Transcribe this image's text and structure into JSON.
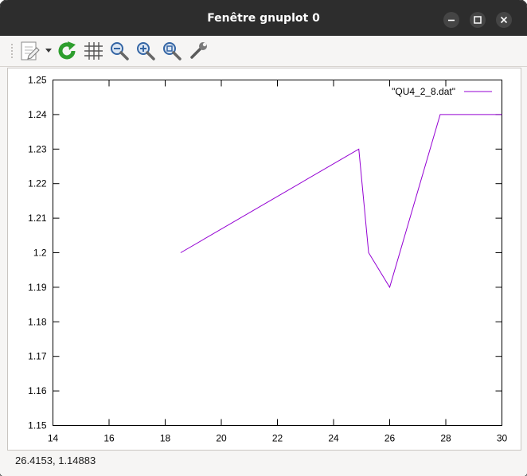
{
  "window": {
    "title": "Fenêtre gnuplot 0"
  },
  "titlebar_buttons": [
    {
      "name": "minimize",
      "icon": "minimize-icon"
    },
    {
      "name": "maximize",
      "icon": "maximize-icon"
    },
    {
      "name": "close",
      "icon": "close-icon"
    }
  ],
  "toolbar": {
    "items": [
      {
        "name": "copy-to-clipboard",
        "icon": "clipboard-icon",
        "has_dropdown": true
      },
      {
        "name": "replot",
        "icon": "refresh-icon"
      },
      {
        "name": "grid",
        "icon": "grid-icon"
      },
      {
        "name": "zoom-out",
        "icon": "zoom-out-icon"
      },
      {
        "name": "zoom-in",
        "icon": "zoom-in-icon"
      },
      {
        "name": "zoom-fit",
        "icon": "zoom-fit-icon"
      },
      {
        "name": "preferences",
        "icon": "wrench-icon"
      }
    ]
  },
  "colors": {
    "series": "#9400d3",
    "titlebar": "#2d2d2d",
    "refresh": "#2e9e2e",
    "zoom": "#3465a4"
  },
  "chart_data": {
    "type": "line",
    "title": "",
    "xlabel": "",
    "ylabel": "",
    "xlim": [
      14,
      30
    ],
    "ylim": [
      1.15,
      1.25
    ],
    "xticks": [
      "14",
      "16",
      "18",
      "20",
      "22",
      "24",
      "26",
      "28",
      "30"
    ],
    "yticks": [
      "1.15",
      "1.16",
      "1.17",
      "1.18",
      "1.19",
      "1.2",
      "1.21",
      "1.22",
      "1.23",
      "1.24",
      "1.25"
    ],
    "grid": false,
    "legend": "top-right",
    "series": [
      {
        "name": "\"QU4_2_8.dat\"",
        "x": [
          18.55,
          24.9,
          25.25,
          26.0,
          27.8,
          30.0
        ],
        "y": [
          1.2,
          1.23,
          1.2,
          1.19,
          1.24,
          1.24
        ]
      }
    ]
  },
  "status": {
    "coordinates": "26.4153,  1.14883"
  }
}
